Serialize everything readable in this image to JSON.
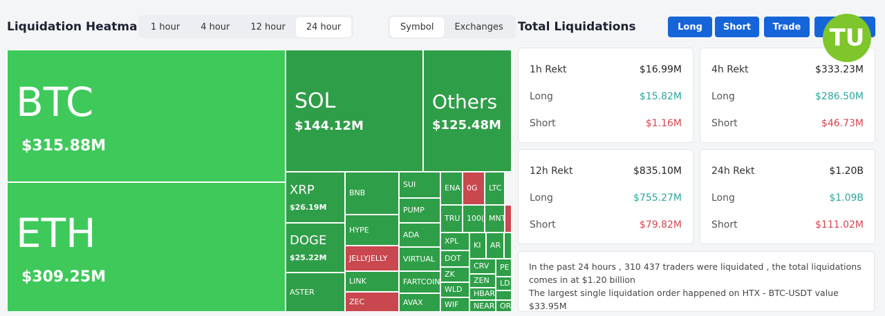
{
  "header": {
    "title": "Liquidation Heatmap",
    "time_tabs": [
      "1 hour",
      "4 hour",
      "12 hour",
      "24 hour"
    ],
    "view_tabs": [
      "Symbol",
      "Exchanges"
    ]
  },
  "heatmap": {
    "tiles": [
      {
        "label": "BTC",
        "value": "$315.88M"
      },
      {
        "label": "ETH",
        "value": "$309.25M"
      },
      {
        "label": "SOL",
        "value": "$144.12M"
      },
      {
        "label": "Others",
        "value": "$125.48M"
      },
      {
        "label": "XRP",
        "value": "$26.19M"
      },
      {
        "label": "DOGE",
        "value": "$25.22M"
      },
      {
        "label": "ASTER"
      },
      {
        "label": "BNB"
      },
      {
        "label": "HYPE"
      },
      {
        "label": "JELLYJELLY"
      },
      {
        "label": "LINK"
      },
      {
        "label": "ZEC"
      },
      {
        "label": "SUI"
      },
      {
        "label": "PUMP"
      },
      {
        "label": "ADA"
      },
      {
        "label": "VIRTUAL"
      },
      {
        "label": "FARTCOIN"
      },
      {
        "label": "AVAX"
      },
      {
        "label": "ENA"
      },
      {
        "label": "0G"
      },
      {
        "label": "LTC"
      },
      {
        "label": "TRU"
      },
      {
        "label": "100("
      },
      {
        "label": "MNT"
      },
      {
        "label": "XPL"
      },
      {
        "label": "KI"
      },
      {
        "label": "AR"
      },
      {
        "label": "DOT"
      },
      {
        "label": "ZK"
      },
      {
        "label": "WLD"
      },
      {
        "label": "WIF"
      },
      {
        "label": "CRV"
      },
      {
        "label": "ZEN"
      },
      {
        "label": "HBAR"
      },
      {
        "label": "NEAR"
      },
      {
        "label": "PE"
      },
      {
        "label": "LD"
      },
      {
        "label": "OR"
      }
    ]
  },
  "panel": {
    "title": "Total Liquidations",
    "buttons": [
      "Long",
      "Short",
      "Trade"
    ],
    "logo": "TU",
    "cards": [
      {
        "title": "1h Rekt",
        "total": "$16.99M",
        "long_label": "Long",
        "long": "$15.82M",
        "short_label": "Short",
        "short": "$1.16M"
      },
      {
        "title": "4h Rekt",
        "total": "$333.23M",
        "long_label": "Long",
        "long": "$286.50M",
        "short_label": "Short",
        "short": "$46.73M"
      },
      {
        "title": "12h Rekt",
        "total": "$835.10M",
        "long_label": "Long",
        "long": "$755.27M",
        "short_label": "Short",
        "short": "$79.82M"
      },
      {
        "title": "24h Rekt",
        "total": "$1.20B",
        "long_label": "Long",
        "long": "$1.09B",
        "short_label": "Short",
        "short": "$111.02M"
      }
    ],
    "summary": [
      "In the past 24 hours , 310 437 traders were liquidated , the total liquidations comes in at $1.20 billion",
      "The largest single liquidation order happened on HTX - BTC-USDT value $33.95M"
    ]
  }
}
